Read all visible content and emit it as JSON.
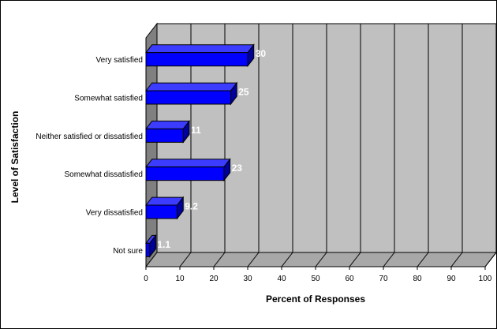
{
  "chart_data": {
    "type": "bar",
    "orientation": "horizontal",
    "three_d": true,
    "categories": [
      "Very satisfied",
      "Somewhat satisfied",
      "Neither satisfied or dissatisfied",
      "Somewhat dissatisfied",
      "Very dissatisfied",
      "Not sure"
    ],
    "values": [
      30,
      25,
      11,
      23,
      9.2,
      1.1
    ],
    "value_labels": [
      "30",
      "25",
      "11",
      "23",
      "9.2",
      "1.1"
    ],
    "xlabel": "Percent of Responses",
    "ylabel": "Level of Satisfaction",
    "xlim": [
      0,
      100
    ],
    "xticks": [
      "0",
      "10",
      "20",
      "30",
      "40",
      "50",
      "60",
      "70",
      "80",
      "90",
      "100"
    ],
    "grid": "vertical",
    "legend": "none",
    "colors": {
      "bar_face": "#0000ff",
      "bar_top": "#3c3cff",
      "bar_side": "#00009a",
      "wall": "#c0c0c0",
      "floor": "#a8a8a8",
      "value_label": "#ffffff",
      "background": "#ffffff"
    }
  }
}
